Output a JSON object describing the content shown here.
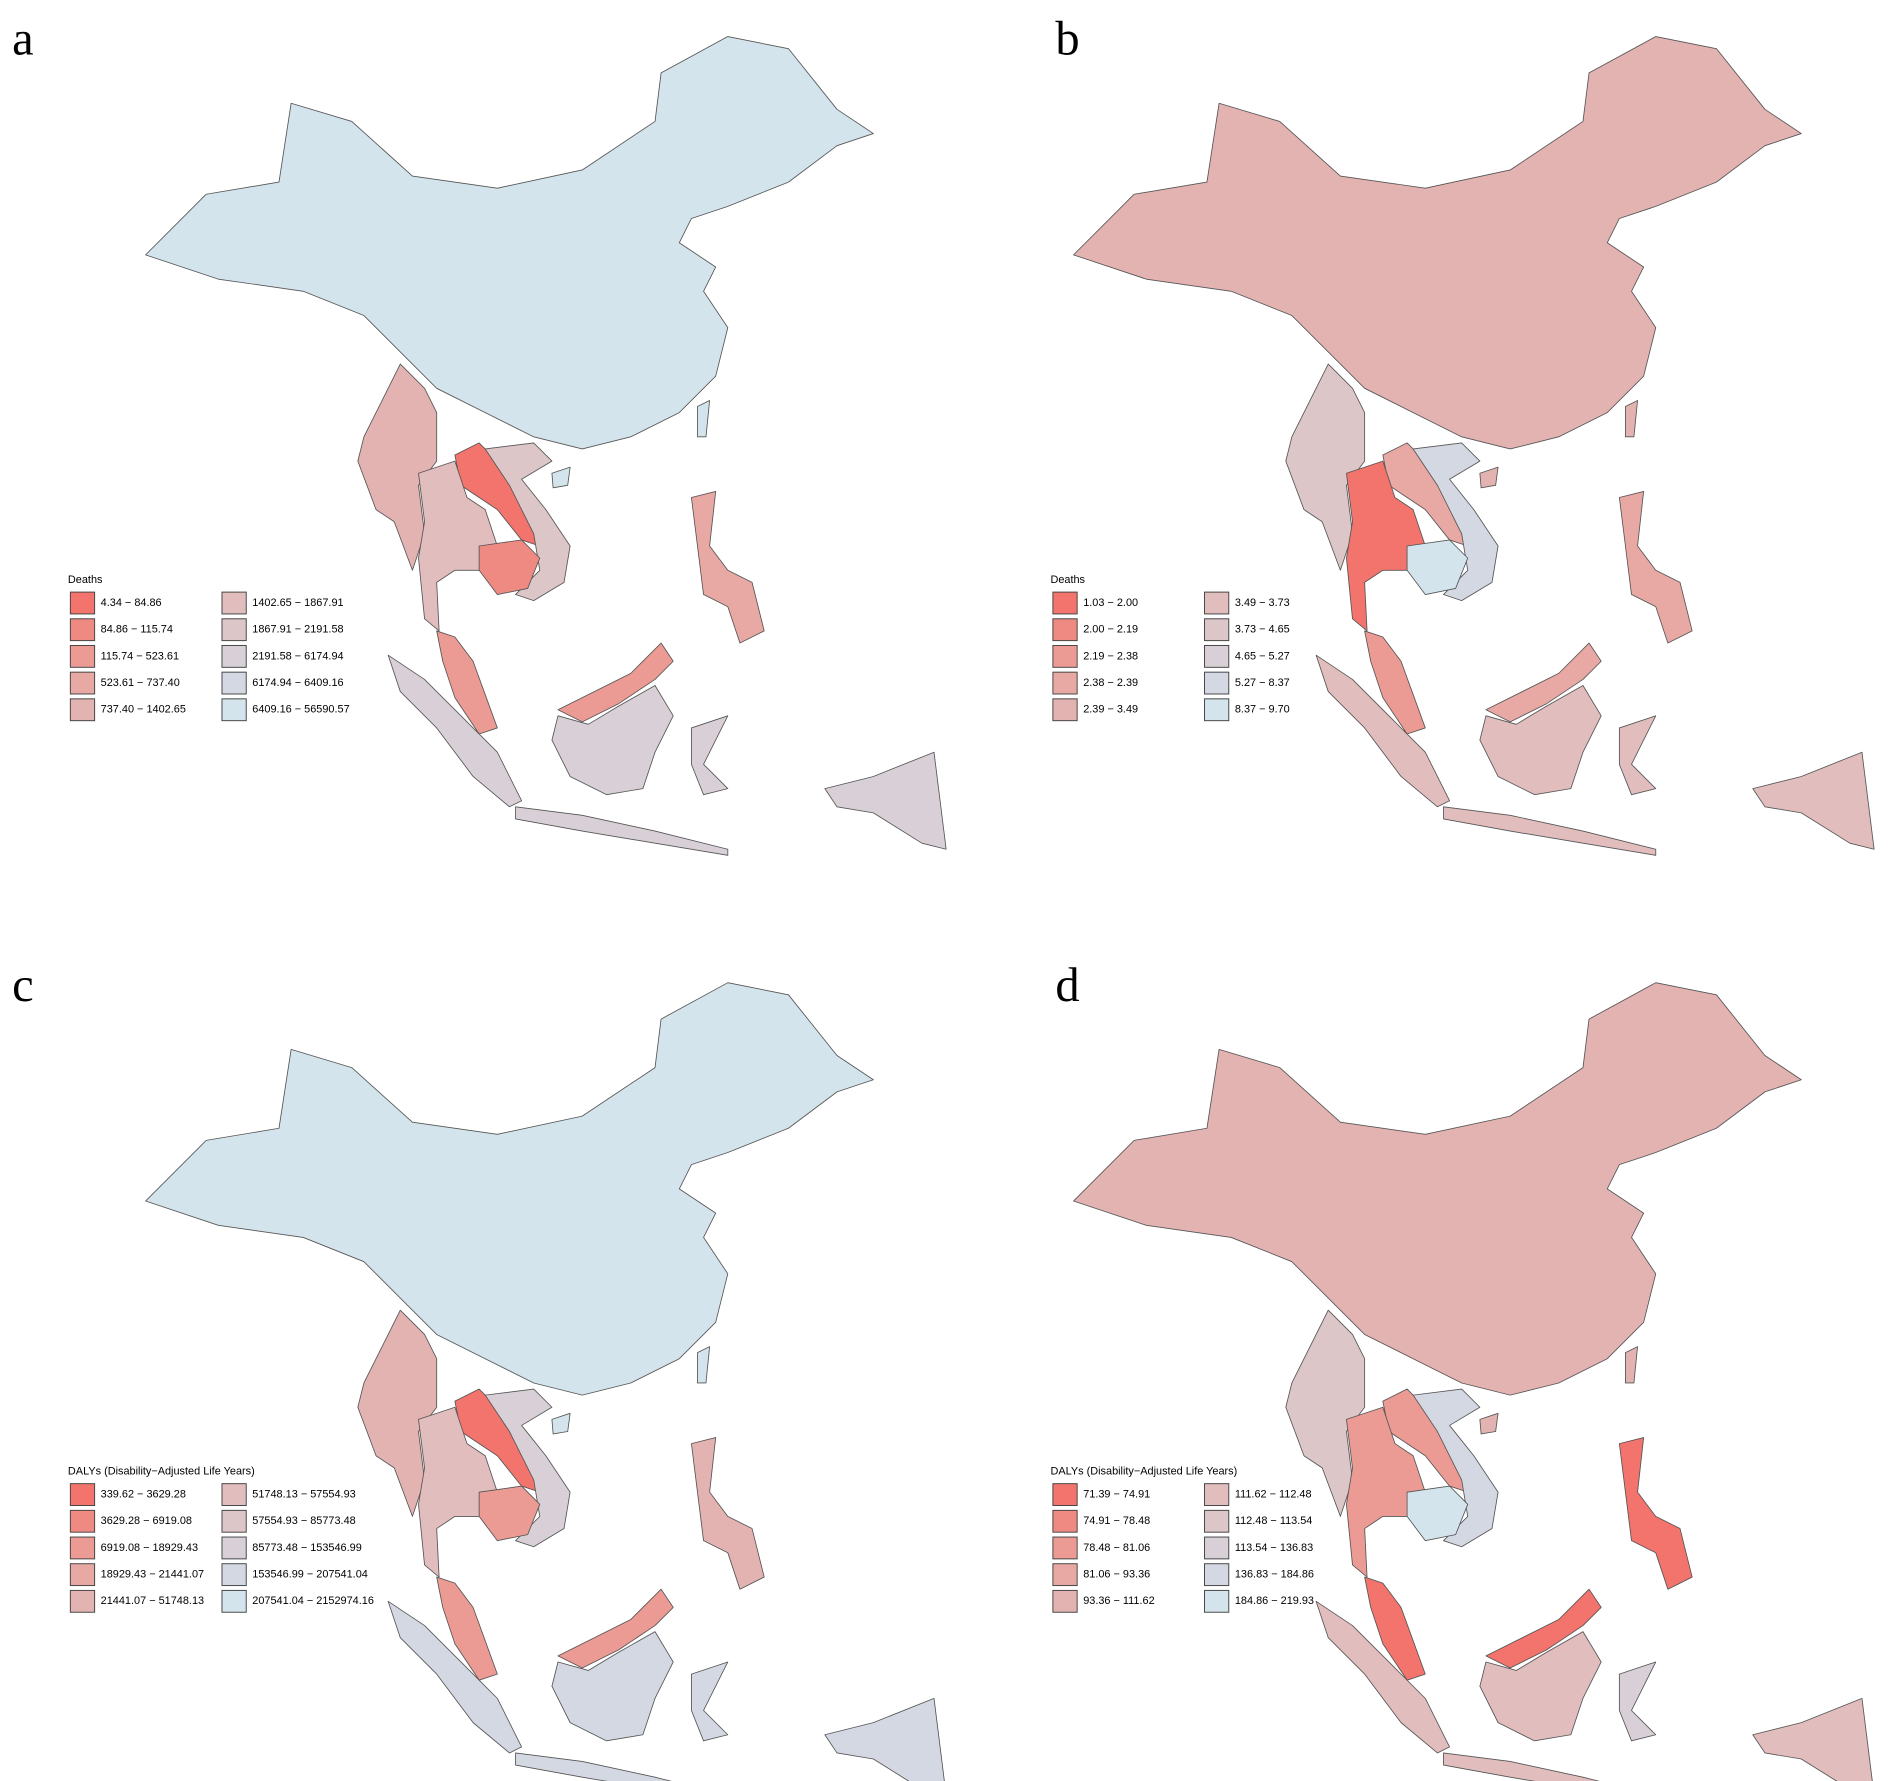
{
  "panels": [
    {
      "label": "a",
      "legend": {
        "title": "Deaths",
        "items": [
          {
            "label": "4.34 − 84.86",
            "color": "#f2746c"
          },
          {
            "label": "84.86 − 115.74",
            "color": "#ef8a83"
          },
          {
            "label": "115.74 − 523.61",
            "color": "#ec9b94"
          },
          {
            "label": "523.61 − 737.40",
            "color": "#e8a9a5"
          },
          {
            "label": "737.40 − 1402.65",
            "color": "#e3b3b1"
          },
          {
            "label": "1402.65 − 1867.91",
            "color": "#e1bdbd"
          },
          {
            "label": "1867.91 − 2191.58",
            "color": "#dcc6c8"
          },
          {
            "label": "2191.58 − 6174.94",
            "color": "#d8d0d6"
          },
          {
            "label": "6174.94 − 6409.16",
            "color": "#d4d8e2"
          },
          {
            "label": "6409.16 − 56590.57",
            "color": "#d3e4ec"
          }
        ]
      }
    },
    {
      "label": "b",
      "legend": {
        "title": "Deaths",
        "items": [
          {
            "label": "1.03 − 2.00",
            "color": "#f2746c"
          },
          {
            "label": "2.00 − 2.19",
            "color": "#ef8a83"
          },
          {
            "label": "2.19 − 2.38",
            "color": "#ec9b94"
          },
          {
            "label": "2.38 − 2.39",
            "color": "#e8a9a5"
          },
          {
            "label": "2.39 − 3.49",
            "color": "#e3b3b1"
          },
          {
            "label": "3.49 − 3.73",
            "color": "#e1bdbd"
          },
          {
            "label": "3.73 − 4.65",
            "color": "#dcc6c8"
          },
          {
            "label": "4.65 − 5.27",
            "color": "#d8d0d6"
          },
          {
            "label": "5.27 − 8.37",
            "color": "#d4d8e2"
          },
          {
            "label": "8.37 − 9.70",
            "color": "#d3e4ec"
          }
        ]
      }
    },
    {
      "label": "c",
      "legend": {
        "title": "DALYs (Disability−Adjusted Life Years)",
        "items": [
          {
            "label": "339.62 − 3629.28",
            "color": "#f2746c"
          },
          {
            "label": "3629.28 − 6919.08",
            "color": "#ef8a83"
          },
          {
            "label": "6919.08 − 18929.43",
            "color": "#ec9b94"
          },
          {
            "label": "18929.43 − 21441.07",
            "color": "#e8a9a5"
          },
          {
            "label": "21441.07 − 51748.13",
            "color": "#e3b3b1"
          },
          {
            "label": "51748.13 − 57554.93",
            "color": "#e1bdbd"
          },
          {
            "label": "57554.93 − 85773.48",
            "color": "#dcc6c8"
          },
          {
            "label": "85773.48 − 153546.99",
            "color": "#d8d0d6"
          },
          {
            "label": "153546.99 − 207541.04",
            "color": "#d4d8e2"
          },
          {
            "label": "207541.04 − 2152974.16",
            "color": "#d3e4ec"
          }
        ]
      }
    },
    {
      "label": "d",
      "legend": {
        "title": "DALYs (Disability−Adjusted Life Years)",
        "items": [
          {
            "label": "71.39 − 74.91",
            "color": "#f2746c"
          },
          {
            "label": "74.91 − 78.48",
            "color": "#ef8a83"
          },
          {
            "label": "78.48 − 81.06",
            "color": "#ec9b94"
          },
          {
            "label": "81.06 − 93.36",
            "color": "#e8a9a5"
          },
          {
            "label": "93.36 − 111.62",
            "color": "#e3b3b1"
          },
          {
            "label": "111.62 − 112.48",
            "color": "#e1bdbd"
          },
          {
            "label": "112.48 − 113.54",
            "color": "#dcc6c8"
          },
          {
            "label": "113.54 − 136.83",
            "color": "#d8d0d6"
          },
          {
            "label": "136.83 − 184.86",
            "color": "#d4d8e2"
          },
          {
            "label": "184.86 − 219.93",
            "color": "#d3e4ec"
          }
        ]
      }
    }
  ]
}
